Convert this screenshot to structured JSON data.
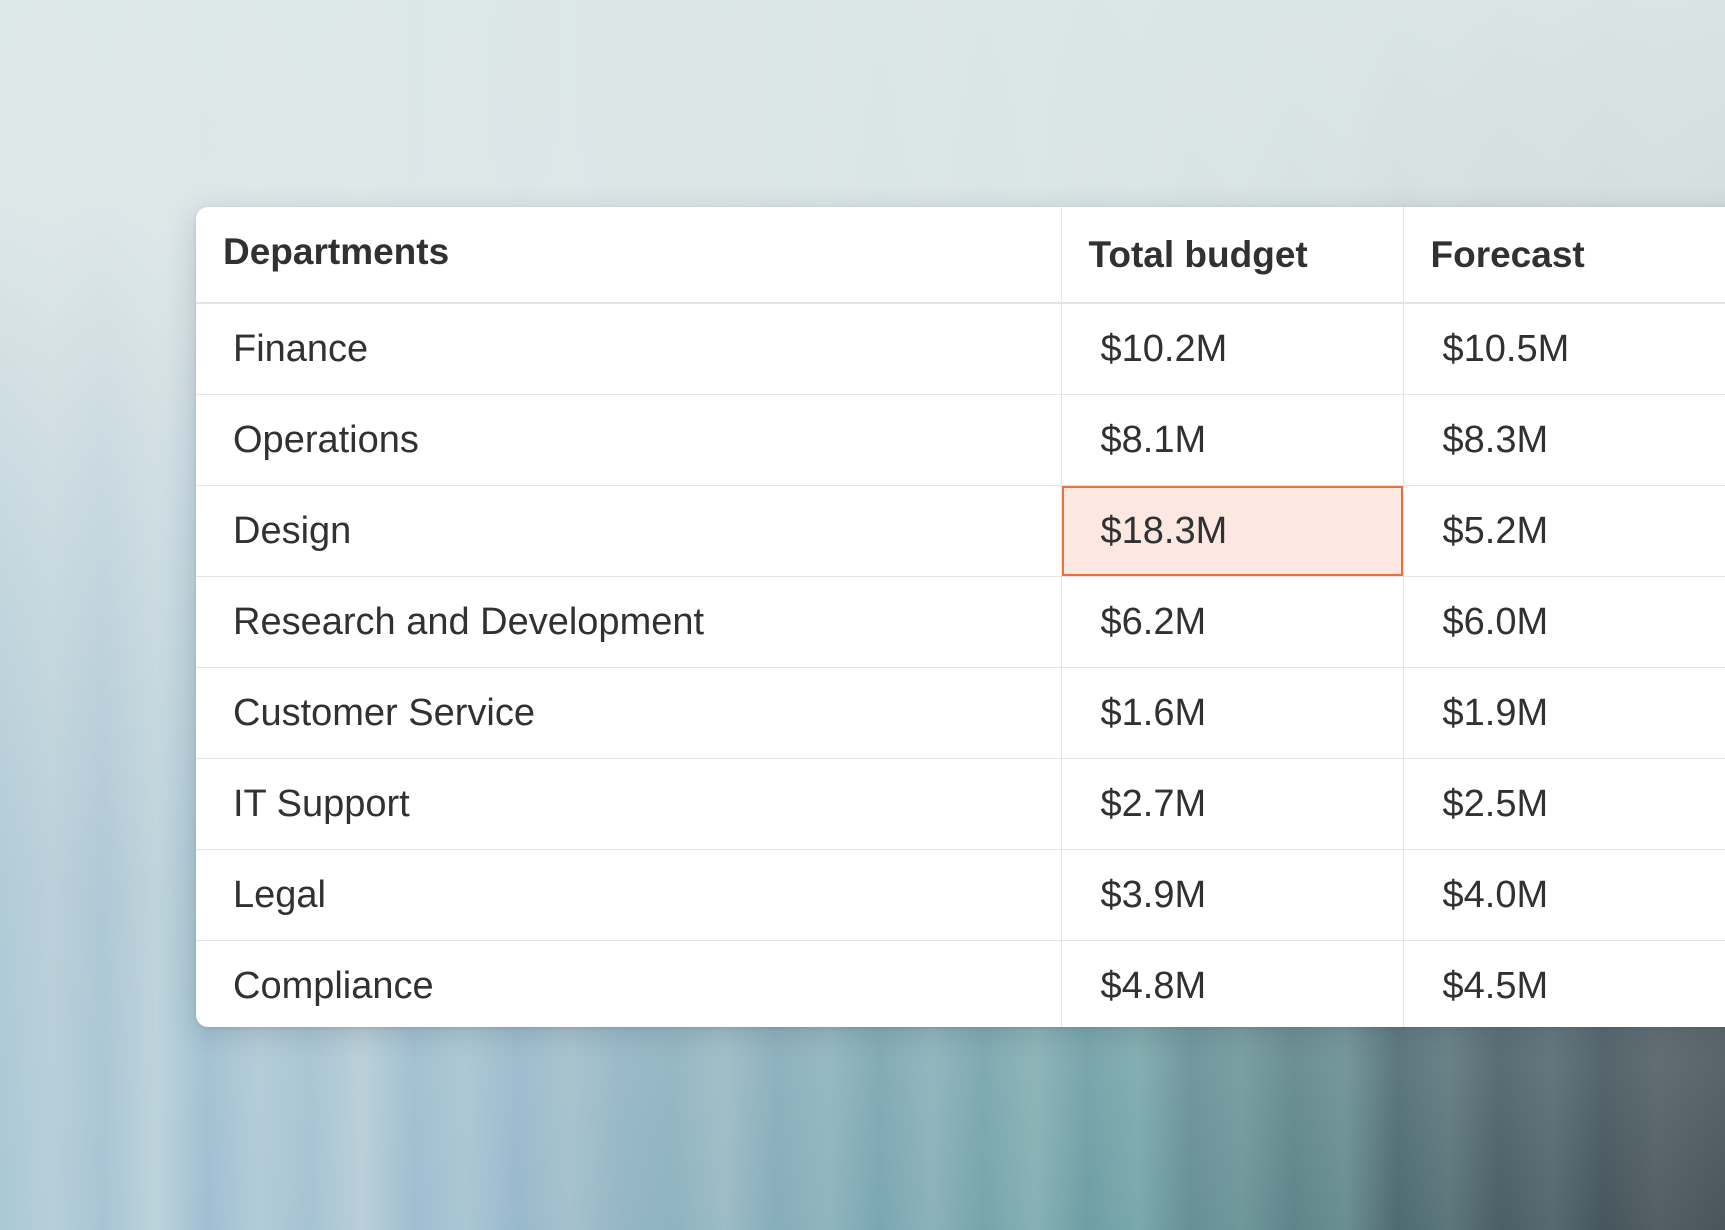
{
  "table": {
    "headers": {
      "departments": "Departments",
      "total_budget": "Total budget",
      "forecast": "Forecast"
    },
    "rows": [
      {
        "department": "Finance",
        "total_budget": "$10.2M",
        "forecast": "$10.5M"
      },
      {
        "department": "Operations",
        "total_budget": "$8.1M",
        "forecast": "$8.3M"
      },
      {
        "department": "Design",
        "total_budget": "$18.3M",
        "forecast": "$5.2M"
      },
      {
        "department": "Research and Development",
        "total_budget": "$6.2M",
        "forecast": "$6.0M"
      },
      {
        "department": "Customer Service",
        "total_budget": "$1.6M",
        "forecast": "$1.9M"
      },
      {
        "department": "IT Support",
        "total_budget": "$2.7M",
        "forecast": "$2.5M"
      },
      {
        "department": "Legal",
        "total_budget": "$3.9M",
        "forecast": "$4.0M"
      },
      {
        "department": "Compliance",
        "total_budget": "$4.8M",
        "forecast": "$4.5M"
      }
    ]
  },
  "colors": {
    "highlight_fill": "#fde8e1",
    "highlight_border": "#e8703f"
  }
}
